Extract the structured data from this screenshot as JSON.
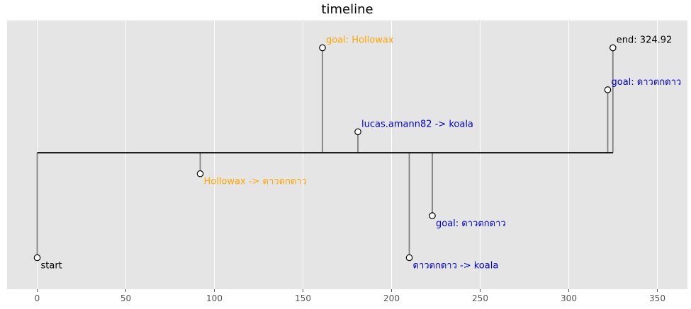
{
  "chart_data": {
    "type": "timeline",
    "title": "timeline",
    "xlim": [
      -17,
      367
    ],
    "ylim": [
      -6.5,
      6.3
    ],
    "xticks": [
      0,
      50,
      100,
      150,
      200,
      250,
      300,
      350
    ],
    "grid": true,
    "background": "#e5e5e5",
    "gridline_color": "#ffffff",
    "baseline_color": "#000000",
    "stem_color": "#808080",
    "events": [
      {
        "x": 0,
        "level": -5,
        "label": "start",
        "color": "#000000"
      },
      {
        "x": 92,
        "level": -1,
        "label": "Hollowax -> ดาวตกดาว",
        "color": "#ffa500"
      },
      {
        "x": 161,
        "level": 5,
        "label": "goal: Hollowax",
        "color": "#ffa500"
      },
      {
        "x": 181,
        "level": 1,
        "label": "lucas.amann82 -> koala",
        "color": "#0000cd"
      },
      {
        "x": 210,
        "level": -5,
        "label": "ดาวตกดาว -> koala",
        "color": "#0000cd"
      },
      {
        "x": 223,
        "level": -3,
        "label": "goal: ดาวตกดาว",
        "color": "#0000cd"
      },
      {
        "x": 322,
        "level": 3,
        "label": "goal: ดาวตกดาว",
        "color": "#0000cd"
      },
      {
        "x": 324.92,
        "level": 5,
        "label": "end: 324.92",
        "color": "#000000"
      }
    ]
  }
}
